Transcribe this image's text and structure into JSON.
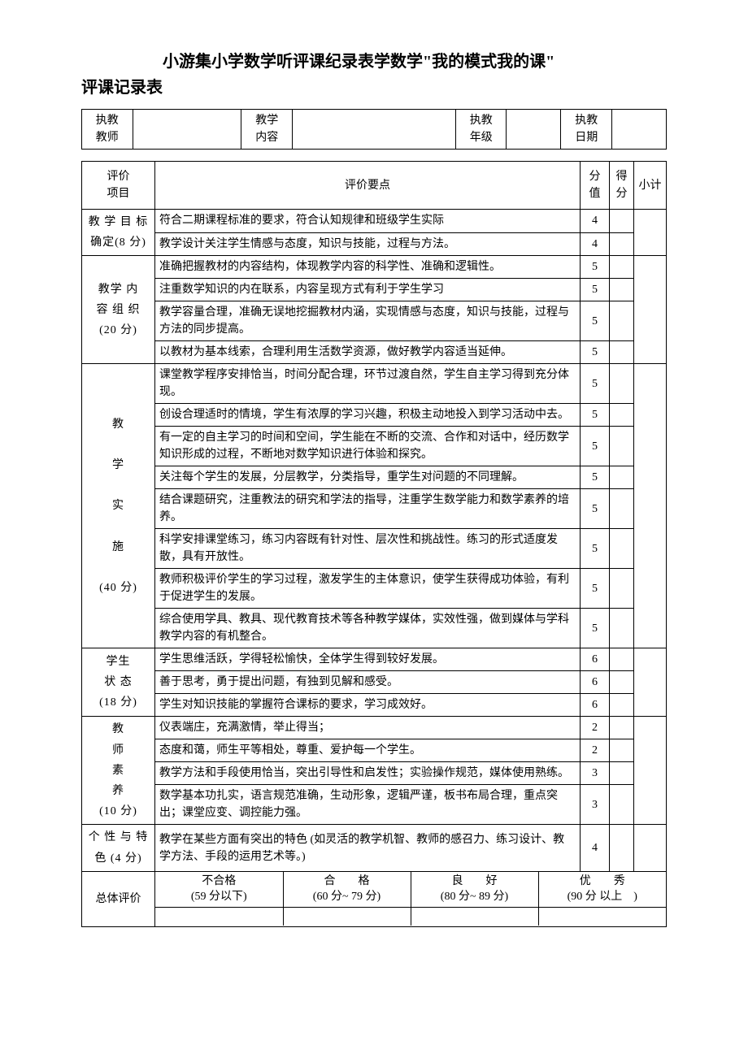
{
  "title": {
    "line1": "小游集小学数学听评课纪录表学数学\"我的模式我的课\"",
    "line2": "评课记录表"
  },
  "info": {
    "teacher_label": "执教\n教师",
    "teacher_value": "",
    "content_label": "教学\n内容",
    "content_value": "",
    "grade_label": "执教\n年级",
    "grade_value": "",
    "date_label": "执教\n日期",
    "date_value": ""
  },
  "headers": {
    "category": "评价\n项目",
    "points": "评价要点",
    "score_value": "分值",
    "score_got": "得\n分",
    "subtotal": "小计"
  },
  "categories": [
    {
      "name": "教 学 目 标\n确定(8 分)",
      "rows": [
        {
          "text": "符合二期课程标准的要求，符合认知规律和班级学生实际",
          "score": "4"
        },
        {
          "text": "教学设计关注学生情感与态度，知识与技能，过程与方法。",
          "score": "4"
        }
      ]
    },
    {
      "name": "教学 内\n容 组 织\n(20 分)",
      "rows": [
        {
          "text": "准确把握教材的内容结构，体现教学内容的科学性、准确和逻辑性。",
          "score": "5"
        },
        {
          "text": "注重数学知识的内在联系，内容呈现方式有利于学生学习",
          "score": "5"
        },
        {
          "text": "教学容量合理，准确无误地挖掘教材内涵，实现情感与态度，知识与技能，过程与方法的同步提高。",
          "score": "5"
        },
        {
          "text": "以教材为基本线索，合理利用生活数学资源，做好教学内容适当延伸。",
          "score": "5"
        }
      ]
    },
    {
      "name": "教\n\n学\n\n实\n\n施\n\n(40 分)",
      "rows": [
        {
          "text": "课堂教学程序安排恰当，时间分配合理，环节过渡自然，学生自主学习得到充分体现。",
          "score": "5"
        },
        {
          "text": "创设合理适时的情境，学生有浓厚的学习兴趣，积极主动地投入到学习活动中去。",
          "score": "5"
        },
        {
          "text": "有一定的自主学习的时间和空间，学生能在不断的交流、合作和对话中，经历数学知识形成的过程，不断地对数学知识进行体验和探究。",
          "score": "5"
        },
        {
          "text": "关注每个学生的发展，分层教学，分类指导，重学生对问题的不同理解。",
          "score": "5"
        },
        {
          "text": "结合课题研究，注重教法的研究和学法的指导，注重学生数学能力和数学素养的培养。",
          "score": "5"
        },
        {
          "text": "科学安排课堂练习，练习内容既有针对性、层次性和挑战性。练习的形式适度发散，具有开放性。",
          "score": "5"
        },
        {
          "text": "教师积极评价学生的学习过程，激发学生的主体意识，使学生获得成功体验，有利于促进学生的发展。",
          "score": "5"
        },
        {
          "text": "综合使用学具、教具、现代教育技术等各种教学媒体，实效性强，做到媒体与学科教学内容的有机整合。",
          "score": "5"
        }
      ]
    },
    {
      "name": "学生\n状 态\n(18 分)",
      "rows": [
        {
          "text": "学生思维活跃，学得轻松愉快，全体学生得到较好发展。",
          "score": "6"
        },
        {
          "text": "善于思考，勇于提出问题，有独到见解和感受。",
          "score": "6"
        },
        {
          "text": "学生对知识技能的掌握符合课标的要求，学习成效好。",
          "score": "6"
        }
      ]
    },
    {
      "name": "教\n师\n素\n养\n(10 分)",
      "rows": [
        {
          "text": "仪表端庄，充满激情，举止得当；",
          "score": "2"
        },
        {
          "text": "态度和蔼，师生平等相处，尊重、爱护每一个学生。",
          "score": "2"
        },
        {
          "text": "教学方法和手段使用恰当，突出引导性和启发性；实验操作规范，媒体使用熟练。",
          "score": "3"
        },
        {
          "text": "数学基本功扎实，语言规范准确，生动形象，逻辑严谨，板书布局合理，重点突出；课堂应变、调控能力强。",
          "score": "3"
        }
      ]
    },
    {
      "name": "个 性 与 特\n色 (4 分)",
      "rows": [
        {
          "text": "教学在某些方面有突出的特色 (如灵活的教学机智、教师的感召力、练习设计、教学方法、手段的运用艺术等。)",
          "score": "4"
        }
      ]
    }
  ],
  "overall": {
    "label": "总体评价",
    "levels": [
      {
        "name": "不合格",
        "range": "(59 分以下)"
      },
      {
        "name": "合　　格",
        "range": "(60 分~ 79 分)"
      },
      {
        "name": "良　　好",
        "range": "(80 分~ 89 分)"
      },
      {
        "name": "优　　秀",
        "range": "(90 分 以上　)"
      }
    ]
  }
}
